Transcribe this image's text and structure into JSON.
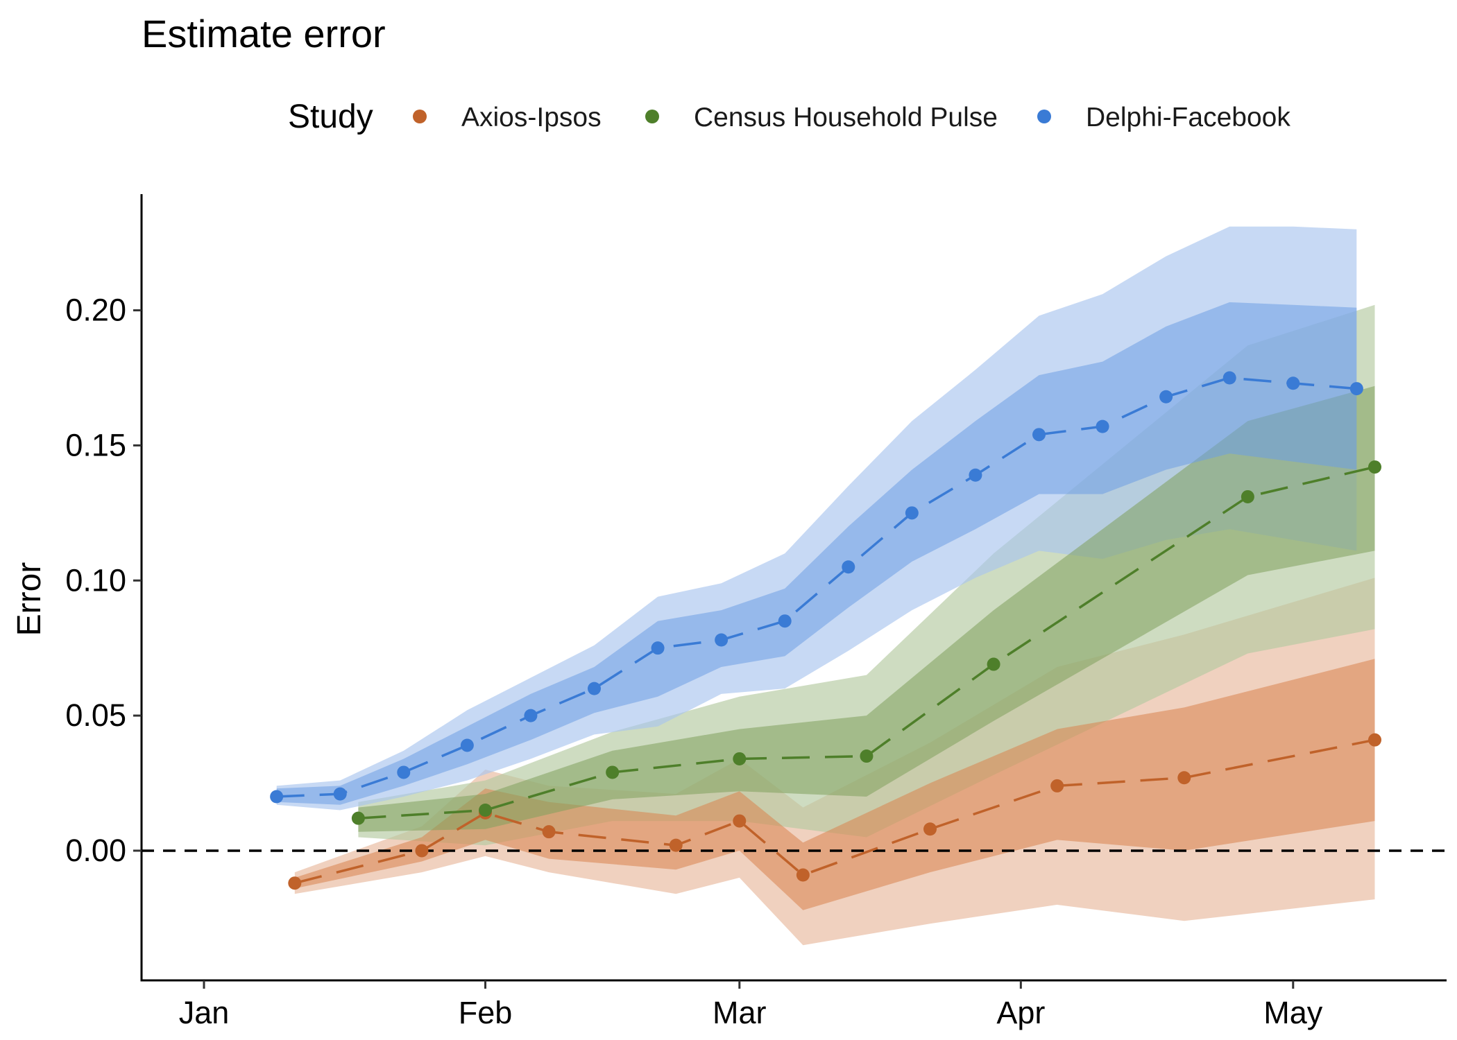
{
  "chart_data": {
    "type": "line",
    "title": "Estimate error",
    "xlabel": "",
    "ylabel": "Error",
    "x_type": "date",
    "xlim": [
      "2021-01-01",
      "2021-05-16"
    ],
    "ylim": [
      -0.048,
      0.243
    ],
    "x_ticks": [
      {
        "date": "2021-01-01",
        "label": "Jan"
      },
      {
        "date": "2021-02-01",
        "label": "Feb"
      },
      {
        "date": "2021-03-01",
        "label": "Mar"
      },
      {
        "date": "2021-04-01",
        "label": "Apr"
      },
      {
        "date": "2021-05-01",
        "label": "May"
      }
    ],
    "y_ticks": [
      {
        "value": 0.0,
        "label": "0.00"
      },
      {
        "value": 0.05,
        "label": "0.05"
      },
      {
        "value": 0.1,
        "label": "0.10"
      },
      {
        "value": 0.15,
        "label": "0.15"
      },
      {
        "value": 0.2,
        "label": "0.20"
      }
    ],
    "reference_line": {
      "y": 0,
      "style": "dashed"
    },
    "grid": false,
    "legend": {
      "title": "Study",
      "position": "top"
    },
    "series": [
      {
        "name": "Axios-Ipsos",
        "color": "#C0622A",
        "band_inner_color": "#D9844F",
        "band_outer_color": "#E8B99D",
        "line_style": "dashed",
        "points": [
          {
            "date": "2021-01-11",
            "y": -0.012,
            "inner": [
              -0.014,
              -0.01
            ],
            "outer": [
              -0.016,
              -0.008
            ]
          },
          {
            "date": "2021-01-25",
            "y": 0.0,
            "inner": [
              -0.004,
              0.005
            ],
            "outer": [
              -0.008,
              0.009
            ]
          },
          {
            "date": "2021-02-01",
            "y": 0.014,
            "inner": [
              0.004,
              0.023
            ],
            "outer": [
              -0.002,
              0.03
            ]
          },
          {
            "date": "2021-02-08",
            "y": 0.007,
            "inner": [
              -0.003,
              0.018
            ],
            "outer": [
              -0.008,
              0.024
            ]
          },
          {
            "date": "2021-02-22",
            "y": 0.002,
            "inner": [
              -0.007,
              0.013
            ],
            "outer": [
              -0.016,
              0.021
            ]
          },
          {
            "date": "2021-03-01",
            "y": 0.011,
            "inner": [
              0.0,
              0.022
            ],
            "outer": [
              -0.01,
              0.034
            ]
          },
          {
            "date": "2021-03-08",
            "y": -0.009,
            "inner": [
              -0.022,
              0.003
            ],
            "outer": [
              -0.035,
              0.016
            ]
          },
          {
            "date": "2021-03-22",
            "y": 0.008,
            "inner": [
              -0.008,
              0.025
            ],
            "outer": [
              -0.027,
              0.04
            ]
          },
          {
            "date": "2021-04-05",
            "y": 0.024,
            "inner": [
              0.004,
              0.045
            ],
            "outer": [
              -0.02,
              0.068
            ]
          },
          {
            "date": "2021-04-19",
            "y": 0.027,
            "inner": [
              0.0,
              0.053
            ],
            "outer": [
              -0.026,
              0.08
            ]
          },
          {
            "date": "2021-05-10",
            "y": 0.041,
            "inner": [
              0.011,
              0.071
            ],
            "outer": [
              -0.018,
              0.101
            ]
          }
        ]
      },
      {
        "name": "Census Household Pulse",
        "color": "#4E7F2A",
        "band_inner_color": "#7FA05C",
        "band_outer_color": "#B4C9A0",
        "line_style": "dashed",
        "points": [
          {
            "date": "2021-01-18",
            "y": 0.012,
            "inner": [
              0.007,
              0.016
            ],
            "outer": [
              0.005,
              0.018
            ]
          },
          {
            "date": "2021-02-01",
            "y": 0.015,
            "inner": [
              0.008,
              0.021
            ],
            "outer": [
              0.002,
              0.026
            ]
          },
          {
            "date": "2021-02-15",
            "y": 0.029,
            "inner": [
              0.019,
              0.037
            ],
            "outer": [
              0.011,
              0.044
            ]
          },
          {
            "date": "2021-03-01",
            "y": 0.034,
            "inner": [
              0.022,
              0.045
            ],
            "outer": [
              0.011,
              0.057
            ]
          },
          {
            "date": "2021-03-15",
            "y": 0.035,
            "inner": [
              0.02,
              0.05
            ],
            "outer": [
              0.005,
              0.065
            ]
          },
          {
            "date": "2021-03-29",
            "y": 0.069,
            "inner": [
              0.048,
              0.089
            ],
            "outer": [
              0.028,
              0.11
            ]
          },
          {
            "date": "2021-04-26",
            "y": 0.131,
            "inner": [
              0.102,
              0.159
            ],
            "outer": [
              0.073,
              0.187
            ]
          },
          {
            "date": "2021-05-10",
            "y": 0.142,
            "inner": [
              0.111,
              0.172
            ],
            "outer": [
              0.082,
              0.202
            ]
          }
        ]
      },
      {
        "name": "Delphi-Facebook",
        "color": "#3A7BD5",
        "band_inner_color": "#6E9EE3",
        "band_outer_color": "#A9C4EE",
        "line_style": "dashed",
        "points": [
          {
            "date": "2021-01-09",
            "y": 0.02,
            "inner": [
              0.018,
              0.023
            ],
            "outer": [
              0.017,
              0.024
            ]
          },
          {
            "date": "2021-01-16",
            "y": 0.021,
            "inner": [
              0.017,
              0.024
            ],
            "outer": [
              0.015,
              0.026
            ]
          },
          {
            "date": "2021-01-23",
            "y": 0.029,
            "inner": [
              0.024,
              0.034
            ],
            "outer": [
              0.02,
              0.037
            ]
          },
          {
            "date": "2021-01-30",
            "y": 0.039,
            "inner": [
              0.032,
              0.046
            ],
            "outer": [
              0.026,
              0.052
            ]
          },
          {
            "date": "2021-02-06",
            "y": 0.05,
            "inner": [
              0.041,
              0.058
            ],
            "outer": [
              0.034,
              0.064
            ]
          },
          {
            "date": "2021-02-13",
            "y": 0.06,
            "inner": [
              0.051,
              0.068
            ],
            "outer": [
              0.043,
              0.076
            ]
          },
          {
            "date": "2021-02-20",
            "y": 0.075,
            "inner": [
              0.057,
              0.085
            ],
            "outer": [
              0.046,
              0.094
            ]
          },
          {
            "date": "2021-02-27",
            "y": 0.078,
            "inner": [
              0.068,
              0.089
            ],
            "outer": [
              0.058,
              0.099
            ]
          },
          {
            "date": "2021-03-06",
            "y": 0.085,
            "inner": [
              0.072,
              0.097
            ],
            "outer": [
              0.06,
              0.11
            ]
          },
          {
            "date": "2021-03-13",
            "y": 0.105,
            "inner": [
              0.09,
              0.12
            ],
            "outer": [
              0.074,
              0.135
            ]
          },
          {
            "date": "2021-03-20",
            "y": 0.125,
            "inner": [
              0.107,
              0.141
            ],
            "outer": [
              0.089,
              0.159
            ]
          },
          {
            "date": "2021-03-27",
            "y": 0.139,
            "inner": [
              0.119,
              0.159
            ],
            "outer": [
              0.101,
              0.178
            ]
          },
          {
            "date": "2021-04-03",
            "y": 0.154,
            "inner": [
              0.132,
              0.176
            ],
            "outer": [
              0.111,
              0.198
            ]
          },
          {
            "date": "2021-04-10",
            "y": 0.157,
            "inner": [
              0.132,
              0.181
            ],
            "outer": [
              0.108,
              0.206
            ]
          },
          {
            "date": "2021-04-17",
            "y": 0.168,
            "inner": [
              0.141,
              0.194
            ],
            "outer": [
              0.115,
              0.22
            ]
          },
          {
            "date": "2021-04-24",
            "y": 0.175,
            "inner": [
              0.147,
              0.203
            ],
            "outer": [
              0.119,
              0.231
            ]
          },
          {
            "date": "2021-05-01",
            "y": 0.173,
            "inner": [
              0.144,
              0.202
            ],
            "outer": [
              0.115,
              0.231
            ]
          },
          {
            "date": "2021-05-08",
            "y": 0.171,
            "inner": [
              0.141,
              0.201
            ],
            "outer": [
              0.111,
              0.23
            ]
          }
        ]
      }
    ]
  }
}
